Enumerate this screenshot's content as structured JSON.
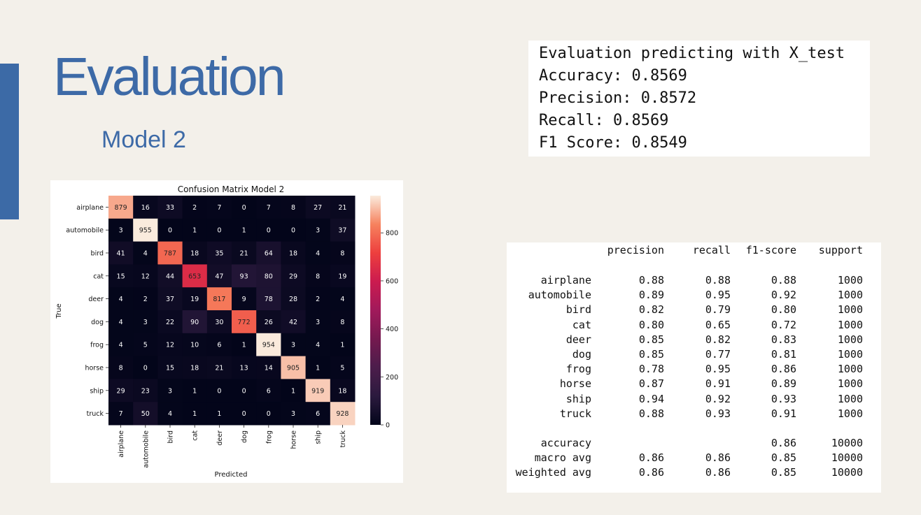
{
  "slide": {
    "title": "Evaluation",
    "subtitle": "Model 2",
    "accent_color": "#3c6aa6"
  },
  "evaluation_output": [
    "Evaluation predicting with X_test",
    "Accuracy: 0.8569",
    "Precision: 0.8572",
    "Recall: 0.8569",
    "F1 Score: 0.8549"
  ],
  "classification_report": {
    "headers": [
      "precision",
      "recall",
      "f1-score",
      "support"
    ],
    "rows": [
      {
        "label": "airplane",
        "precision": "0.88",
        "recall": "0.88",
        "f1": "0.88",
        "support": "1000"
      },
      {
        "label": "automobile",
        "precision": "0.89",
        "recall": "0.95",
        "f1": "0.92",
        "support": "1000"
      },
      {
        "label": "bird",
        "precision": "0.82",
        "recall": "0.79",
        "f1": "0.80",
        "support": "1000"
      },
      {
        "label": "cat",
        "precision": "0.80",
        "recall": "0.65",
        "f1": "0.72",
        "support": "1000"
      },
      {
        "label": "deer",
        "precision": "0.85",
        "recall": "0.82",
        "f1": "0.83",
        "support": "1000"
      },
      {
        "label": "dog",
        "precision": "0.85",
        "recall": "0.77",
        "f1": "0.81",
        "support": "1000"
      },
      {
        "label": "frog",
        "precision": "0.78",
        "recall": "0.95",
        "f1": "0.86",
        "support": "1000"
      },
      {
        "label": "horse",
        "precision": "0.87",
        "recall": "0.91",
        "f1": "0.89",
        "support": "1000"
      },
      {
        "label": "ship",
        "precision": "0.94",
        "recall": "0.92",
        "f1": "0.93",
        "support": "1000"
      },
      {
        "label": "truck",
        "precision": "0.88",
        "recall": "0.93",
        "f1": "0.91",
        "support": "1000"
      }
    ],
    "summary": [
      {
        "label": "accuracy",
        "precision": "",
        "recall": "",
        "f1": "0.86",
        "support": "10000"
      },
      {
        "label": "macro avg",
        "precision": "0.86",
        "recall": "0.86",
        "f1": "0.85",
        "support": "10000"
      },
      {
        "label": "weighted avg",
        "precision": "0.86",
        "recall": "0.86",
        "f1": "0.85",
        "support": "10000"
      }
    ]
  },
  "chart_data": {
    "type": "heatmap",
    "title": "Confusion Matrix Model 2",
    "xlabel": "Predicted",
    "ylabel": "True",
    "categories": [
      "airplane",
      "automobile",
      "bird",
      "cat",
      "deer",
      "dog",
      "frog",
      "horse",
      "ship",
      "truck"
    ],
    "matrix": [
      [
        879,
        16,
        33,
        2,
        7,
        0,
        7,
        8,
        27,
        21
      ],
      [
        3,
        955,
        0,
        1,
        0,
        1,
        0,
        0,
        3,
        37
      ],
      [
        41,
        4,
        787,
        18,
        35,
        21,
        64,
        18,
        4,
        8
      ],
      [
        15,
        12,
        44,
        653,
        47,
        93,
        80,
        29,
        8,
        19
      ],
      [
        4,
        2,
        37,
        19,
        817,
        9,
        78,
        28,
        2,
        4
      ],
      [
        4,
        3,
        22,
        90,
        30,
        772,
        26,
        42,
        3,
        8
      ],
      [
        4,
        5,
        12,
        10,
        6,
        1,
        954,
        3,
        4,
        1
      ],
      [
        8,
        0,
        15,
        18,
        21,
        13,
        14,
        905,
        1,
        5
      ],
      [
        29,
        23,
        3,
        1,
        0,
        0,
        6,
        1,
        919,
        18
      ],
      [
        7,
        50,
        4,
        1,
        1,
        0,
        0,
        3,
        6,
        928
      ]
    ],
    "colorbar_ticks": [
      0,
      200,
      400,
      600,
      800
    ],
    "colorbar_range": [
      0,
      955
    ],
    "colormap": "rocket"
  }
}
